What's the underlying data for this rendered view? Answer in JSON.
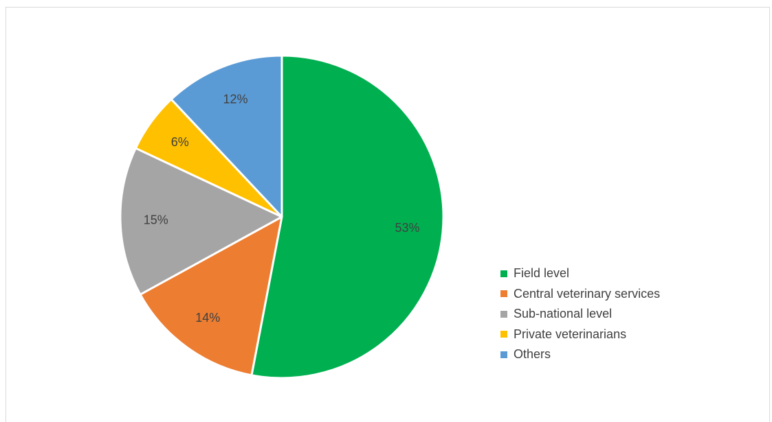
{
  "chart_data": {
    "type": "pie",
    "title": "",
    "start_angle_deg": 0,
    "direction": "clockwise",
    "slices": [
      {
        "name": "Field level",
        "value": 53,
        "label": "53%",
        "color": "#00b050"
      },
      {
        "name": "Central veterinary services",
        "value": 14,
        "label": "14%",
        "color": "#ed7d31"
      },
      {
        "name": "Sub-national level",
        "value": 15,
        "label": "15%",
        "color": "#a5a5a5"
      },
      {
        "name": "Private veterinarians",
        "value": 6,
        "label": "6%",
        "color": "#ffc000"
      },
      {
        "name": "Others",
        "value": 12,
        "label": "12%",
        "color": "#5b9bd5"
      }
    ],
    "legend_position": "right"
  }
}
